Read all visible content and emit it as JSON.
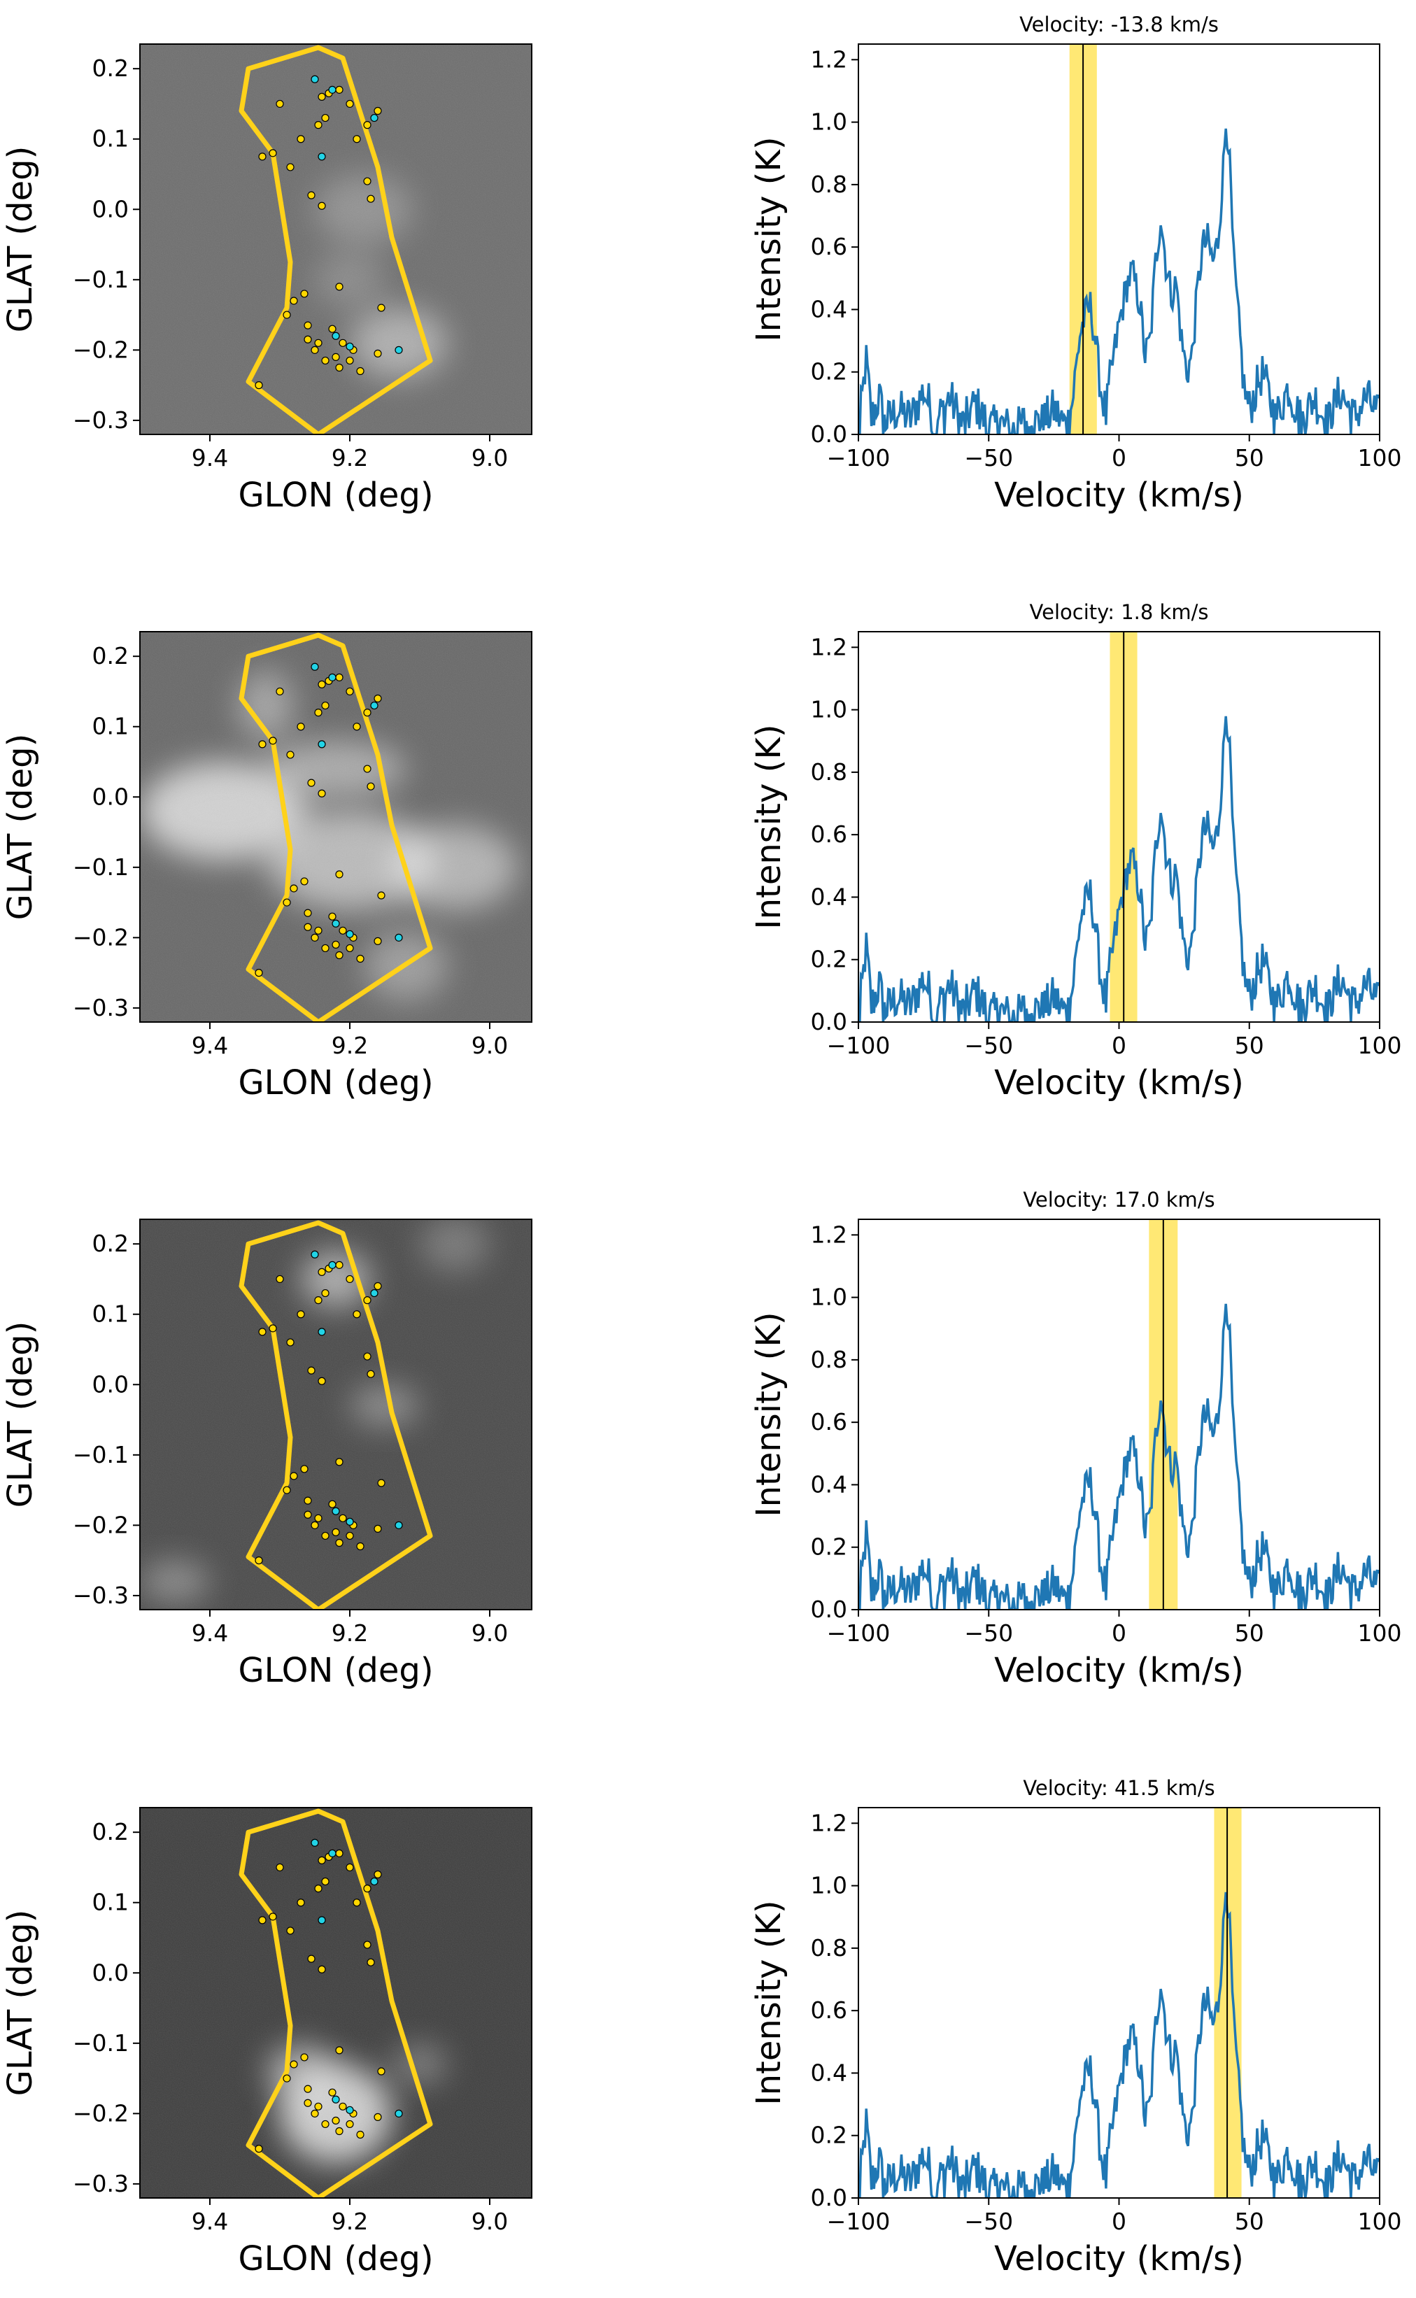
{
  "colors": {
    "spectrum": "#1f77b4",
    "band": "#ffe45c",
    "marker_line": "#000000",
    "polygon": "#ffd21a",
    "source_yellow": "#ffd700",
    "source_cyan": "#22d3e6"
  },
  "map_axes": {
    "xlabel": "GLON (deg)",
    "ylabel": "GLAT (deg)",
    "xlim": [
      9.5,
      8.94
    ],
    "ylim": [
      -0.32,
      0.235
    ],
    "xticks": [
      9.4,
      9.2,
      9.0
    ],
    "xtick_labels": [
      "9.4",
      "9.2",
      "9.0"
    ],
    "yticks": [
      0.2,
      0.1,
      0.0,
      -0.1,
      -0.2,
      -0.3
    ],
    "ytick_labels": [
      "0.2",
      "0.1",
      "0.0",
      "−0.1",
      "−0.2",
      "−0.3"
    ]
  },
  "spectrum_axes": {
    "xlabel": "Velocity (km/s)",
    "ylabel": "Intensity (K)",
    "xlim": [
      -100,
      100
    ],
    "ylim": [
      0,
      1.25
    ],
    "xticks": [
      -100,
      -50,
      0,
      50,
      100
    ],
    "xtick_labels": [
      "−100",
      "−50",
      "0",
      "50",
      "100"
    ],
    "yticks": [
      0.0,
      0.2,
      0.4,
      0.6,
      0.8,
      1.0,
      1.2
    ],
    "ytick_labels": [
      "0.0",
      "0.2",
      "0.4",
      "0.6",
      "0.8",
      "1.0",
      "1.2"
    ]
  },
  "region_polygon": [
    [
      9.245,
      0.23
    ],
    [
      9.345,
      0.2
    ],
    [
      9.355,
      0.14
    ],
    [
      9.31,
      0.08
    ],
    [
      9.285,
      -0.075
    ],
    [
      9.29,
      -0.14
    ],
    [
      9.345,
      -0.245
    ],
    [
      9.245,
      -0.32
    ],
    [
      9.085,
      -0.215
    ],
    [
      9.14,
      -0.04
    ],
    [
      9.16,
      0.06
    ],
    [
      9.21,
      0.215
    ]
  ],
  "sources": {
    "yellow": [
      [
        9.3,
        0.15
      ],
      [
        9.24,
        0.16
      ],
      [
        9.23,
        0.165
      ],
      [
        9.215,
        0.17
      ],
      [
        9.2,
        0.15
      ],
      [
        9.16,
        0.14
      ],
      [
        9.175,
        0.12
      ],
      [
        9.235,
        0.13
      ],
      [
        9.245,
        0.12
      ],
      [
        9.27,
        0.1
      ],
      [
        9.31,
        0.08
      ],
      [
        9.325,
        0.075
      ],
      [
        9.19,
        0.1
      ],
      [
        9.285,
        0.06
      ],
      [
        9.255,
        0.02
      ],
      [
        9.175,
        0.04
      ],
      [
        9.17,
        0.015
      ],
      [
        9.24,
        0.005
      ],
      [
        9.28,
        -0.13
      ],
      [
        9.265,
        -0.12
      ],
      [
        9.215,
        -0.11
      ],
      [
        9.29,
        -0.15
      ],
      [
        9.26,
        -0.165
      ],
      [
        9.225,
        -0.17
      ],
      [
        9.21,
        -0.19
      ],
      [
        9.195,
        -0.2
      ],
      [
        9.22,
        -0.21
      ],
      [
        9.185,
        -0.23
      ],
      [
        9.25,
        -0.2
      ],
      [
        9.26,
        -0.185
      ],
      [
        9.2,
        -0.215
      ],
      [
        9.215,
        -0.225
      ],
      [
        9.16,
        -0.205
      ],
      [
        9.245,
        -0.19
      ],
      [
        9.235,
        -0.215
      ],
      [
        9.155,
        -0.14
      ],
      [
        9.33,
        -0.25
      ]
    ],
    "cyan": [
      [
        9.25,
        0.185
      ],
      [
        9.225,
        0.17
      ],
      [
        9.165,
        0.13
      ],
      [
        9.24,
        0.075
      ],
      [
        9.2,
        -0.195
      ],
      [
        9.13,
        -0.2
      ],
      [
        9.22,
        -0.18
      ]
    ]
  },
  "panels": [
    {
      "spectrum_title": "Velocity: -13.8 km/s",
      "velocity": -13.8,
      "band": [
        -19.0,
        -8.5
      ],
      "map_background": "#6e6e6e",
      "emission": [
        {
          "glon": 9.18,
          "glat": 0.0,
          "rx": 0.07,
          "ry": 0.05,
          "opacity": 0.25
        },
        {
          "glon": 9.13,
          "glat": -0.19,
          "rx": 0.07,
          "ry": 0.05,
          "opacity": 0.45
        },
        {
          "glon": 9.2,
          "glat": -0.1,
          "rx": 0.05,
          "ry": 0.04,
          "opacity": 0.2
        }
      ]
    },
    {
      "spectrum_title": "Velocity: 1.8 km/s",
      "velocity": 1.8,
      "band": [
        -3.5,
        7.0
      ],
      "map_background": "#686868",
      "emission": [
        {
          "glon": 9.38,
          "glat": -0.02,
          "rx": 0.12,
          "ry": 0.07,
          "opacity": 0.7
        },
        {
          "glon": 9.2,
          "glat": -0.09,
          "rx": 0.12,
          "ry": 0.07,
          "opacity": 0.55
        },
        {
          "glon": 9.05,
          "glat": -0.1,
          "rx": 0.09,
          "ry": 0.06,
          "opacity": 0.5
        },
        {
          "glon": 9.22,
          "glat": 0.04,
          "rx": 0.1,
          "ry": 0.04,
          "opacity": 0.45
        },
        {
          "glon": 9.32,
          "glat": 0.13,
          "rx": 0.04,
          "ry": 0.05,
          "opacity": 0.4
        },
        {
          "glon": 9.12,
          "glat": -0.24,
          "rx": 0.06,
          "ry": 0.05,
          "opacity": 0.35
        }
      ]
    },
    {
      "spectrum_title": "Velocity: 17.0 km/s",
      "velocity": 17.0,
      "band": [
        11.5,
        22.5
      ],
      "map_background": "#4a4a4a",
      "emission": [
        {
          "glon": 9.22,
          "glat": 0.15,
          "rx": 0.05,
          "ry": 0.04,
          "opacity": 0.55
        },
        {
          "glon": 9.15,
          "glat": -0.03,
          "rx": 0.05,
          "ry": 0.03,
          "opacity": 0.35
        },
        {
          "glon": 9.45,
          "glat": -0.28,
          "rx": 0.05,
          "ry": 0.03,
          "opacity": 0.35
        },
        {
          "glon": 9.05,
          "glat": 0.2,
          "rx": 0.05,
          "ry": 0.04,
          "opacity": 0.25
        }
      ]
    },
    {
      "spectrum_title": "Velocity: 41.5 km/s",
      "velocity": 41.5,
      "band": [
        36.5,
        47.0
      ],
      "map_background": "#3e3e3e",
      "emission": [
        {
          "glon": 9.22,
          "glat": -0.2,
          "rx": 0.08,
          "ry": 0.07,
          "opacity": 0.75
        },
        {
          "glon": 9.27,
          "glat": -0.14,
          "rx": 0.05,
          "ry": 0.04,
          "opacity": 0.5
        },
        {
          "glon": 9.1,
          "glat": -0.13,
          "rx": 0.04,
          "ry": 0.03,
          "opacity": 0.3
        }
      ]
    }
  ],
  "chart_data": [
    {
      "type": "line",
      "title": "Velocity: -13.8 km/s",
      "xlabel": "Velocity (km/s)",
      "ylabel": "Intensity (K)",
      "xlim": [
        -100,
        100
      ],
      "ylim": [
        0,
        1.25
      ],
      "highlight_velocity": -13.8,
      "highlight_band": [
        -19.0,
        -8.5
      ],
      "series": [
        {
          "name": "spectrum",
          "x": [
            -100,
            -97,
            -95,
            -92,
            -90,
            -85,
            -80,
            -75,
            -70,
            -65,
            -60,
            -55,
            -50,
            -45,
            -40,
            -35,
            -30,
            -25,
            -20,
            -18,
            -15,
            -13,
            -11,
            -9,
            -7,
            -5,
            -3,
            0,
            3,
            5,
            8,
            10,
            12,
            14,
            16,
            18,
            20,
            22,
            24,
            26,
            28,
            30,
            32,
            34,
            36,
            38,
            40,
            41,
            42,
            44,
            46,
            48,
            50,
            55,
            60,
            65,
            70,
            75,
            80,
            85,
            90,
            95,
            100
          ],
          "values": [
            0.0,
            0.24,
            0.05,
            0.12,
            0.03,
            0.08,
            0.05,
            0.14,
            0.04,
            0.12,
            0.03,
            0.1,
            0.02,
            0.03,
            0.01,
            0.05,
            0.03,
            0.08,
            0.02,
            0.1,
            0.32,
            0.38,
            0.41,
            0.3,
            0.15,
            0.06,
            0.2,
            0.35,
            0.48,
            0.52,
            0.42,
            0.25,
            0.3,
            0.55,
            0.7,
            0.55,
            0.45,
            0.48,
            0.3,
            0.2,
            0.25,
            0.45,
            0.6,
            0.62,
            0.55,
            0.62,
            0.85,
            1.0,
            0.95,
            0.55,
            0.35,
            0.15,
            0.08,
            0.2,
            0.05,
            0.15,
            0.04,
            0.12,
            0.03,
            0.14,
            0.05,
            0.12,
            0.05
          ]
        }
      ]
    },
    {
      "type": "line",
      "title": "Velocity: 1.8 km/s",
      "xlabel": "Velocity (km/s)",
      "ylabel": "Intensity (K)",
      "xlim": [
        -100,
        100
      ],
      "ylim": [
        0,
        1.25
      ],
      "highlight_velocity": 1.8,
      "highlight_band": [
        -3.5,
        7.0
      ],
      "series": [
        {
          "name": "spectrum",
          "x": [
            -100,
            -97,
            -95,
            -92,
            -90,
            -85,
            -80,
            -75,
            -70,
            -65,
            -60,
            -55,
            -50,
            -45,
            -40,
            -35,
            -30,
            -25,
            -20,
            -18,
            -15,
            -13,
            -11,
            -9,
            -7,
            -5,
            -3,
            0,
            3,
            5,
            8,
            10,
            12,
            14,
            16,
            18,
            20,
            22,
            24,
            26,
            28,
            30,
            32,
            34,
            36,
            38,
            40,
            41,
            42,
            44,
            46,
            48,
            50,
            55,
            60,
            65,
            70,
            75,
            80,
            85,
            90,
            95,
            100
          ],
          "values": [
            0.0,
            0.24,
            0.05,
            0.12,
            0.03,
            0.08,
            0.05,
            0.14,
            0.04,
            0.12,
            0.03,
            0.1,
            0.02,
            0.03,
            0.01,
            0.05,
            0.03,
            0.08,
            0.02,
            0.1,
            0.32,
            0.38,
            0.41,
            0.3,
            0.15,
            0.06,
            0.2,
            0.35,
            0.48,
            0.52,
            0.42,
            0.25,
            0.3,
            0.55,
            0.7,
            0.55,
            0.45,
            0.48,
            0.3,
            0.2,
            0.25,
            0.45,
            0.6,
            0.62,
            0.55,
            0.62,
            0.85,
            1.0,
            0.95,
            0.55,
            0.35,
            0.15,
            0.08,
            0.2,
            0.05,
            0.15,
            0.04,
            0.12,
            0.03,
            0.14,
            0.05,
            0.12,
            0.05
          ]
        }
      ]
    },
    {
      "type": "line",
      "title": "Velocity: 17.0 km/s",
      "xlabel": "Velocity (km/s)",
      "ylabel": "Intensity (K)",
      "xlim": [
        -100,
        100
      ],
      "ylim": [
        0,
        1.25
      ],
      "highlight_velocity": 17.0,
      "highlight_band": [
        11.5,
        22.5
      ],
      "series": [
        {
          "name": "spectrum",
          "x": [
            -100,
            -97,
            -95,
            -92,
            -90,
            -85,
            -80,
            -75,
            -70,
            -65,
            -60,
            -55,
            -50,
            -45,
            -40,
            -35,
            -30,
            -25,
            -20,
            -18,
            -15,
            -13,
            -11,
            -9,
            -7,
            -5,
            -3,
            0,
            3,
            5,
            8,
            10,
            12,
            14,
            16,
            18,
            20,
            22,
            24,
            26,
            28,
            30,
            32,
            34,
            36,
            38,
            40,
            41,
            42,
            44,
            46,
            48,
            50,
            55,
            60,
            65,
            70,
            75,
            80,
            85,
            90,
            95,
            100
          ],
          "values": [
            0.0,
            0.24,
            0.05,
            0.12,
            0.03,
            0.08,
            0.05,
            0.14,
            0.04,
            0.12,
            0.03,
            0.1,
            0.02,
            0.03,
            0.01,
            0.05,
            0.03,
            0.08,
            0.02,
            0.1,
            0.32,
            0.38,
            0.41,
            0.3,
            0.15,
            0.06,
            0.2,
            0.35,
            0.48,
            0.52,
            0.42,
            0.25,
            0.3,
            0.55,
            0.7,
            0.55,
            0.45,
            0.48,
            0.3,
            0.2,
            0.25,
            0.45,
            0.6,
            0.62,
            0.55,
            0.62,
            0.85,
            1.0,
            0.95,
            0.55,
            0.35,
            0.15,
            0.08,
            0.2,
            0.05,
            0.15,
            0.04,
            0.12,
            0.03,
            0.14,
            0.05,
            0.12,
            0.05
          ]
        }
      ]
    },
    {
      "type": "line",
      "title": "Velocity: 41.5 km/s",
      "xlabel": "Velocity (km/s)",
      "ylabel": "Intensity (K)",
      "xlim": [
        -100,
        100
      ],
      "ylim": [
        0,
        1.25
      ],
      "highlight_velocity": 41.5,
      "highlight_band": [
        36.5,
        47.0
      ],
      "series": [
        {
          "name": "spectrum",
          "x": [
            -100,
            -97,
            -95,
            -92,
            -90,
            -85,
            -80,
            -75,
            -70,
            -65,
            -60,
            -55,
            -50,
            -45,
            -40,
            -35,
            -30,
            -25,
            -20,
            -18,
            -15,
            -13,
            -11,
            -9,
            -7,
            -5,
            -3,
            0,
            3,
            5,
            8,
            10,
            12,
            14,
            16,
            18,
            20,
            22,
            24,
            26,
            28,
            30,
            32,
            34,
            36,
            38,
            40,
            41,
            42,
            44,
            46,
            48,
            50,
            55,
            60,
            65,
            70,
            75,
            80,
            85,
            90,
            95,
            100
          ],
          "values": [
            0.0,
            0.24,
            0.05,
            0.12,
            0.03,
            0.08,
            0.05,
            0.14,
            0.04,
            0.12,
            0.03,
            0.1,
            0.02,
            0.03,
            0.01,
            0.05,
            0.03,
            0.08,
            0.02,
            0.1,
            0.32,
            0.38,
            0.41,
            0.3,
            0.15,
            0.06,
            0.2,
            0.35,
            0.48,
            0.52,
            0.42,
            0.25,
            0.3,
            0.55,
            0.7,
            0.55,
            0.45,
            0.48,
            0.3,
            0.2,
            0.25,
            0.45,
            0.6,
            0.62,
            0.55,
            0.62,
            0.85,
            1.0,
            0.95,
            0.55,
            0.35,
            0.15,
            0.08,
            0.2,
            0.05,
            0.15,
            0.04,
            0.12,
            0.03,
            0.14,
            0.05,
            0.12,
            0.05
          ]
        }
      ]
    }
  ]
}
